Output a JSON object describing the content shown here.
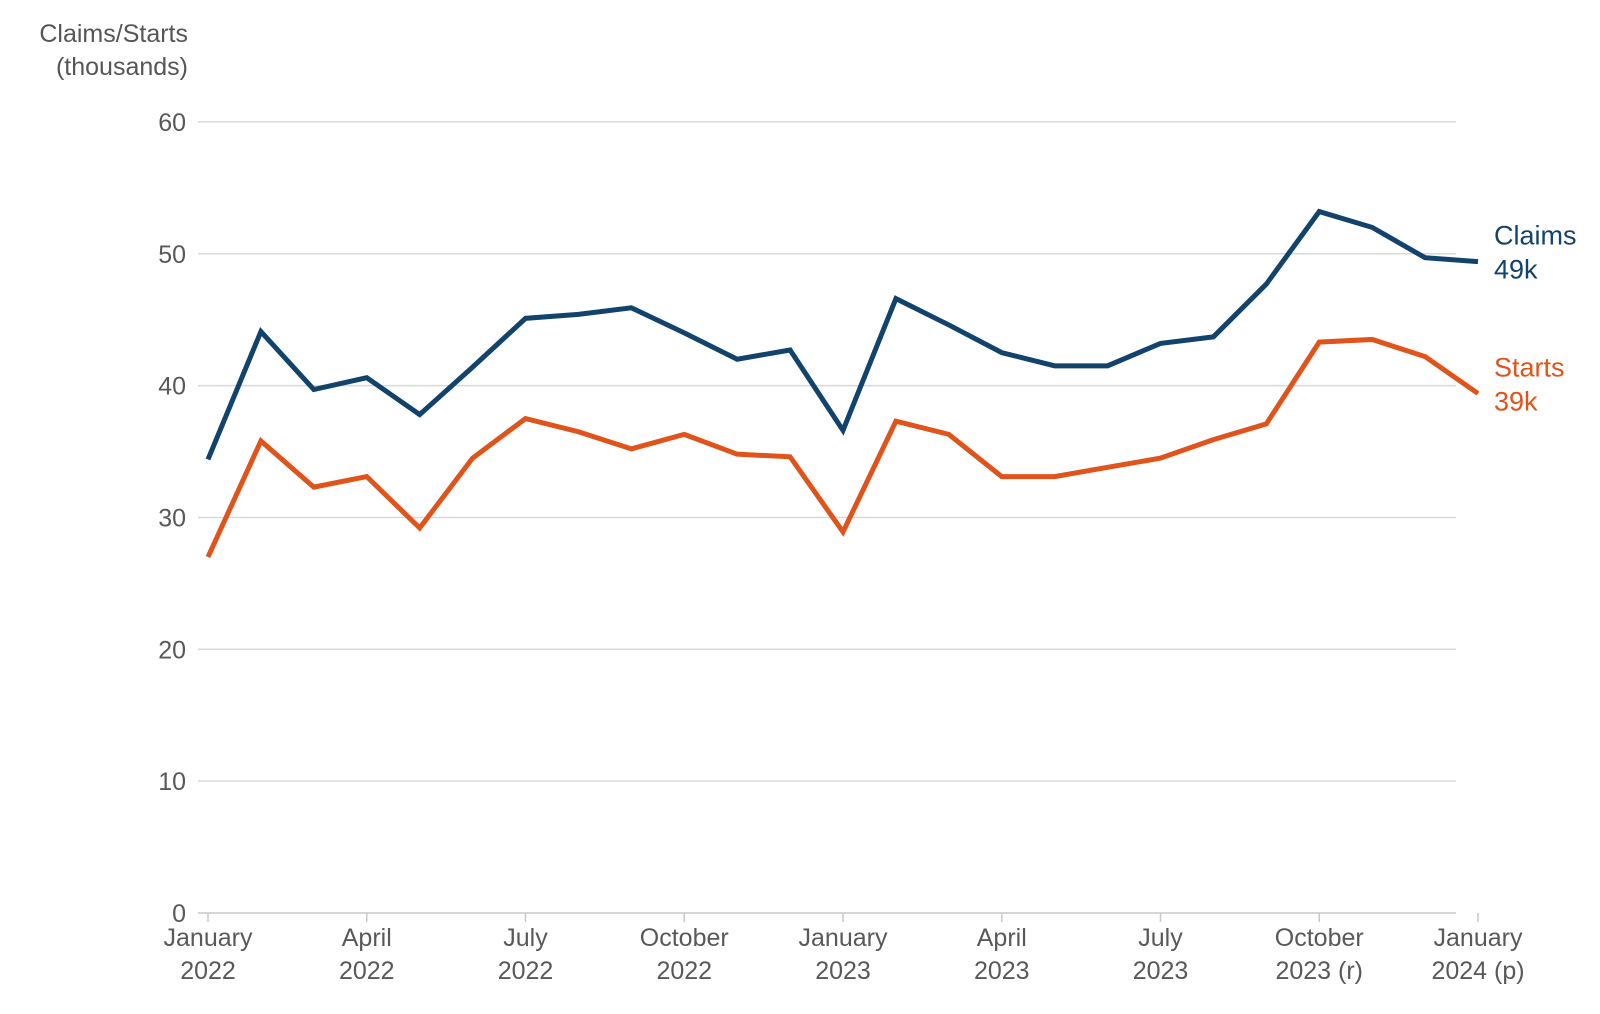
{
  "chart": {
    "y_axis_title_line1": "Claims/Starts",
    "y_axis_title_line2": "(thousands)"
  },
  "chart_data": {
    "type": "line",
    "title": "",
    "xlabel": "",
    "ylabel": "Claims/Starts (thousands)",
    "ylim": [
      0,
      60
    ],
    "yticks": [
      0,
      10,
      20,
      30,
      40,
      50,
      60
    ],
    "grid": true,
    "legend_position": "right-end-labels",
    "x": [
      "January 2022",
      "February 2022",
      "March 2022",
      "April 2022",
      "May 2022",
      "June 2022",
      "July 2022",
      "August 2022",
      "September 2022",
      "October 2022",
      "November 2022",
      "December 2022",
      "January 2023",
      "February 2023",
      "March 2023",
      "April 2023",
      "May 2023",
      "June 2023",
      "July 2023",
      "August 2023",
      "September 2023",
      "October 2023 (r)",
      "November 2023 (r)",
      "December 2023 (r)",
      "January 2024 (p)"
    ],
    "x_ticks": [
      {
        "i": 0,
        "l1": "January",
        "l2": "2022"
      },
      {
        "i": 3,
        "l1": "April",
        "l2": "2022"
      },
      {
        "i": 6,
        "l1": "July",
        "l2": "2022"
      },
      {
        "i": 9,
        "l1": "October",
        "l2": "2022"
      },
      {
        "i": 12,
        "l1": "January",
        "l2": "2023"
      },
      {
        "i": 15,
        "l1": "April",
        "l2": "2023"
      },
      {
        "i": 18,
        "l1": "July",
        "l2": "2023"
      },
      {
        "i": 21,
        "l1": "October",
        "l2": "2023 (r)"
      },
      {
        "i": 24,
        "l1": "January",
        "l2": "2024 (p)"
      }
    ],
    "series": [
      {
        "name": "Claims",
        "color": "#12436d",
        "end_label": "Claims",
        "end_value_label": "49k",
        "values": [
          34.4,
          44.1,
          39.7,
          40.6,
          37.8,
          41.4,
          45.1,
          45.4,
          45.9,
          44.0,
          42.0,
          42.7,
          36.6,
          46.6,
          44.6,
          42.5,
          41.5,
          41.5,
          43.2,
          43.7,
          47.7,
          53.2,
          52.0,
          49.7,
          49.4
        ]
      },
      {
        "name": "Starts",
        "color": "#e0541c",
        "end_label": "Starts",
        "end_value_label": "39k",
        "values": [
          27.0,
          35.8,
          32.3,
          33.1,
          29.2,
          34.5,
          37.5,
          36.5,
          35.2,
          36.3,
          34.8,
          34.6,
          28.9,
          37.3,
          36.3,
          33.1,
          33.1,
          33.8,
          34.5,
          35.9,
          37.1,
          43.3,
          43.5,
          42.2,
          39.4
        ]
      }
    ],
    "style": {
      "gridline_color": "#d9d9d9",
      "axis_color": "#c8c8c8",
      "tick_label_color": "#595959"
    }
  }
}
